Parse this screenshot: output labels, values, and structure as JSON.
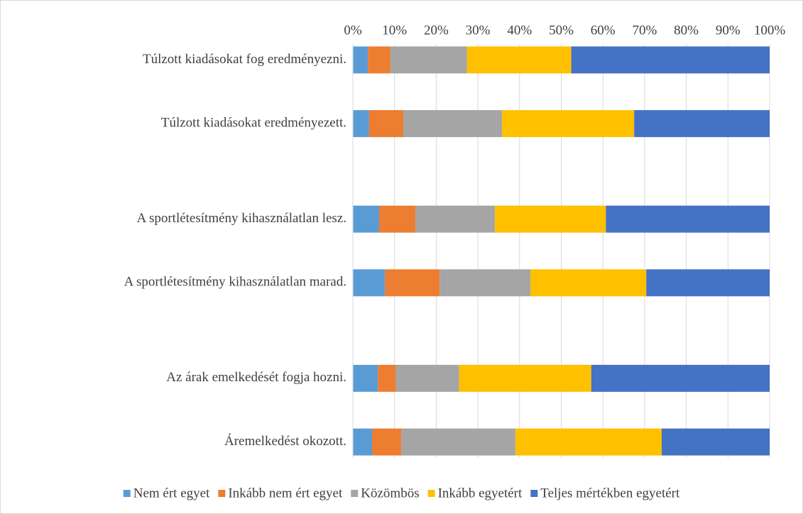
{
  "chart_data": {
    "type": "bar",
    "orientation": "horizontal",
    "stacked": true,
    "categories": [
      "Túlzott kiadásokat fog eredményezni.",
      null,
      "Túlzott kiadásokat eredményezett.",
      null,
      null,
      "A sportlétesítmény kihasználatlan lesz.",
      null,
      "A sportlétesítmény kihasználatlan marad.",
      null,
      null,
      "Az árak emelkedését fogja hozni.",
      null,
      "Áremelkedést okozott."
    ],
    "series": [
      {
        "name": "Nem ért egyet",
        "color": "#5b9bd5",
        "values": [
          3.6,
          null,
          3.9,
          null,
          null,
          6.3,
          null,
          7.7,
          null,
          null,
          6.0,
          null,
          4.6
        ]
      },
      {
        "name": "Inkább nem ért egyet",
        "color": "#ed7d31",
        "values": [
          5.4,
          null,
          8.2,
          null,
          null,
          8.7,
          null,
          13.1,
          null,
          null,
          4.3,
          null,
          7.0
        ]
      },
      {
        "name": "Közömbös",
        "color": "#a5a5a5",
        "values": [
          18.4,
          null,
          23.7,
          null,
          null,
          19.1,
          null,
          21.8,
          null,
          null,
          15.2,
          null,
          27.4
        ]
      },
      {
        "name": "Inkább egyetért",
        "color": "#ffc000",
        "values": [
          25.0,
          null,
          31.7,
          null,
          null,
          26.6,
          null,
          27.8,
          null,
          null,
          31.7,
          null,
          35.1
        ]
      },
      {
        "name": "Teljes mértékben egyetért",
        "color": "#4472c4",
        "values": [
          47.6,
          null,
          32.5,
          null,
          null,
          39.3,
          null,
          29.6,
          null,
          null,
          42.8,
          null,
          25.9
        ]
      }
    ],
    "xlim": [
      0,
      100
    ],
    "xticks": [
      {
        "value": 0,
        "label": "0%"
      },
      {
        "value": 10,
        "label": "10%"
      },
      {
        "value": 20,
        "label": "20%"
      },
      {
        "value": 30,
        "label": "30%"
      },
      {
        "value": 40,
        "label": "40%"
      },
      {
        "value": 50,
        "label": "50%"
      },
      {
        "value": 60,
        "label": "60%"
      },
      {
        "value": 70,
        "label": "70%"
      },
      {
        "value": 80,
        "label": "80%"
      },
      {
        "value": 90,
        "label": "90%"
      },
      {
        "value": 100,
        "label": "100%"
      }
    ],
    "grid": true,
    "legend": "bottom"
  }
}
